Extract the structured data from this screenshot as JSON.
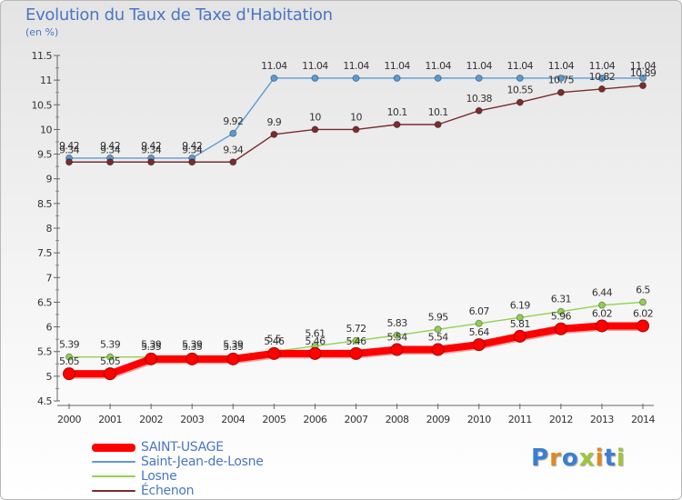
{
  "chart_data": {
    "type": "line",
    "title": "Evolution du Taux de Taxe d'Habitation",
    "unit_label": "(en %)",
    "x": [
      "2000",
      "2001",
      "2002",
      "2003",
      "2004",
      "2005",
      "2006",
      "2007",
      "2008",
      "2009",
      "2010",
      "2011",
      "2012",
      "2013",
      "2014"
    ],
    "ylim": [
      4.5,
      11.5
    ],
    "yticks": [
      "4.5",
      "5",
      "5.5",
      "6",
      "6.5",
      "7",
      "7.5",
      "8",
      "8.5",
      "9",
      "9.5",
      "10",
      "10.5",
      "11",
      "11.5"
    ],
    "grid": false,
    "legend_position": "bottom-left",
    "series": [
      {
        "name": "SAINT-USAGE",
        "color": "#ff0000",
        "values": [
          5.05,
          5.05,
          5.35,
          5.35,
          5.35,
          5.46,
          5.46,
          5.46,
          5.54,
          5.54,
          5.64,
          5.81,
          5.96,
          6.02,
          6.02
        ],
        "labels": [
          "5.05",
          "5.05",
          "5.35",
          "5.35",
          "5.35",
          "5.46",
          "5.46",
          "5.46",
          "5.54",
          "5.54",
          "5.64",
          "5.81",
          "5.96",
          "6.02",
          "6.02"
        ]
      },
      {
        "name": "Saint-Jean-de-Losne",
        "color": "#5b9bd5",
        "values": [
          9.42,
          9.42,
          9.42,
          9.42,
          9.92,
          11.04,
          11.04,
          11.04,
          11.04,
          11.04,
          11.04,
          11.04,
          11.04,
          11.04,
          11.04
        ],
        "labels": [
          "9.42",
          "9.42",
          "9.42",
          "9.42",
          "9.92",
          "11.04",
          "11.04",
          "11.04",
          "11.04",
          "11.04",
          "11.04",
          "11.04",
          "11.04",
          "11.04",
          "11.04"
        ]
      },
      {
        "name": "Losne",
        "color": "#92d050",
        "values": [
          5.39,
          5.39,
          5.39,
          5.39,
          5.39,
          5.5,
          5.61,
          5.72,
          5.83,
          5.95,
          6.07,
          6.19,
          6.31,
          6.44,
          6.5
        ],
        "labels": [
          "5.39",
          "5.39",
          "5.39",
          "5.39",
          "5.39",
          "5.5",
          "5.61",
          "5.72",
          "5.83",
          "5.95",
          "6.07",
          "6.19",
          "6.31",
          "6.44",
          "6.5"
        ]
      },
      {
        "name": "Échenon",
        "color": "#7b2c2c",
        "values": [
          9.34,
          9.34,
          9.34,
          9.34,
          9.34,
          9.9,
          10,
          10,
          10.1,
          10.1,
          10.38,
          10.55,
          10.75,
          10.82,
          10.89
        ],
        "labels": [
          "9.34",
          "9.34",
          "9.34",
          "9.34",
          "9.34",
          "9.9",
          "10",
          "10",
          "10.1",
          "10.1",
          "10.38",
          "10.55",
          "10.75",
          "10.82",
          "10.89"
        ]
      }
    ]
  },
  "logo": {
    "letters": [
      {
        "ch": "P",
        "color": "#3b7fd0"
      },
      {
        "ch": "r",
        "color": "#e08a1e"
      },
      {
        "ch": "o",
        "color": "#3b7fd0"
      },
      {
        "ch": "x",
        "color": "#9fc63a"
      },
      {
        "ch": "i",
        "color": "#e08a1e"
      },
      {
        "ch": "t",
        "color": "#3b7fd0"
      },
      {
        "ch": "i",
        "color": "#9fc63a"
      }
    ]
  }
}
